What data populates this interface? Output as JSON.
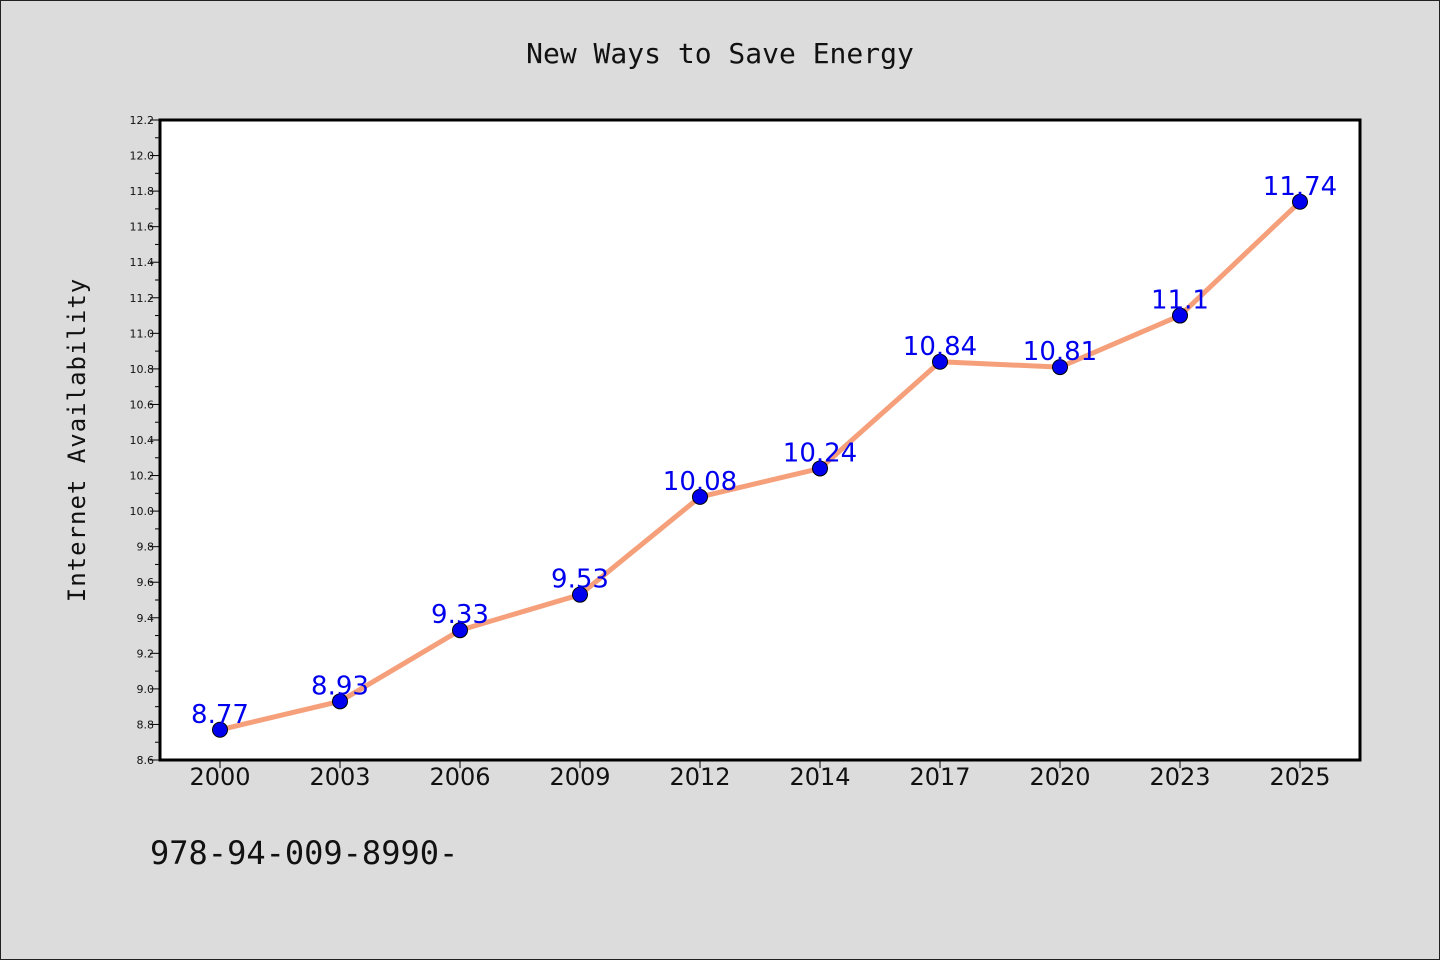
{
  "chart_data": {
    "type": "line",
    "title": "New Ways to Save Energy",
    "xlabel": "",
    "ylabel": "Internet Availability",
    "categories": [
      "2000",
      "2003",
      "2006",
      "2009",
      "2012",
      "2014",
      "2017",
      "2020",
      "2023",
      "2025"
    ],
    "series": [
      {
        "values": [
          8.77,
          8.93,
          9.33,
          9.53,
          10.08,
          10.24,
          10.84,
          10.81,
          11.1,
          11.74
        ],
        "labels": [
          "8.77",
          "8.93",
          "9.33",
          "9.53",
          "10.08",
          "10.24",
          "10.84",
          "10.81",
          "11.1",
          "11.74"
        ]
      }
    ],
    "ylim": [
      8.6,
      12.2
    ],
    "yticks": [
      "8.6",
      "8.8",
      "9.0",
      "9.2",
      "9.4",
      "9.6",
      "9.8",
      "10.0",
      "10.2",
      "10.4",
      "10.6",
      "10.8",
      "11.0",
      "11.2",
      "11.4",
      "11.6",
      "11.8",
      "12.0",
      "12.2"
    ],
    "grid": false,
    "legend": "none",
    "colors": {
      "line": "#f5a07a",
      "marker": "#0000ee",
      "label": "#0000ee",
      "background": "#dcdcdc",
      "plot_area": "#ffffff"
    }
  },
  "footnote": "978-94-009-8990-"
}
